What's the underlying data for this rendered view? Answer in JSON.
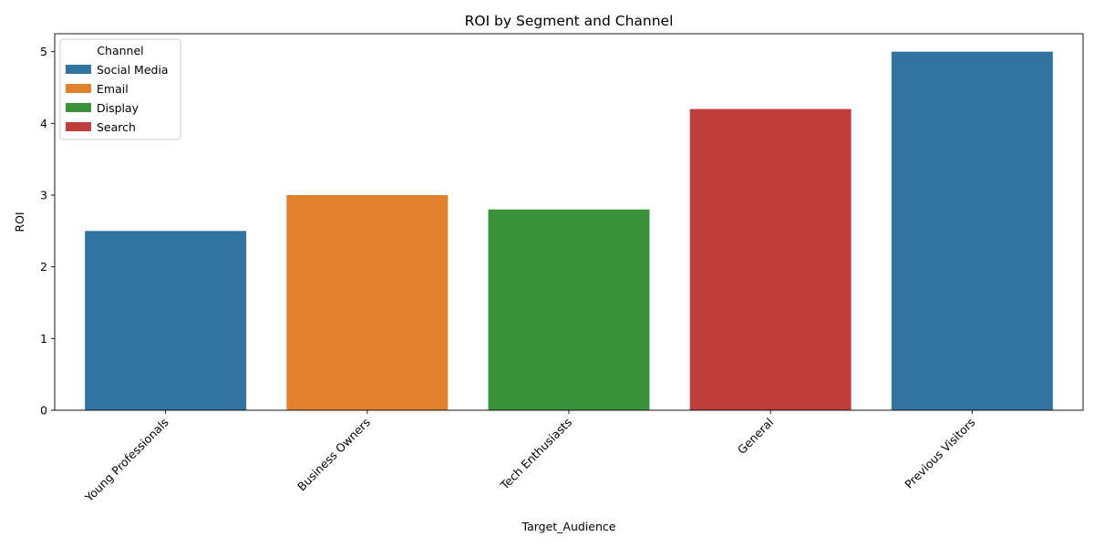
{
  "chart_data": {
    "type": "bar",
    "title": "ROI by Segment and Channel",
    "xlabel": "Target_Audience",
    "ylabel": "ROI",
    "categories": [
      "Young Professionals",
      "Business Owners",
      "Tech Enthusiasts",
      "General",
      "Previous Visitors"
    ],
    "values": [
      2.5,
      3.0,
      2.8,
      4.2,
      5.0
    ],
    "bar_channels": [
      "Social Media",
      "Email",
      "Display",
      "Search",
      "Social Media"
    ],
    "ylim": [
      0,
      5.25
    ],
    "yticks": [
      0,
      1,
      2,
      3,
      4,
      5
    ],
    "grid": false,
    "legend": {
      "title": "Channel",
      "placement": "top-left",
      "entries": [
        {
          "label": "Social Media",
          "color": "#3274a1"
        },
        {
          "label": "Email",
          "color": "#e1812c"
        },
        {
          "label": "Display",
          "color": "#3a923a"
        },
        {
          "label": "Search",
          "color": "#c03d3e"
        }
      ]
    }
  }
}
